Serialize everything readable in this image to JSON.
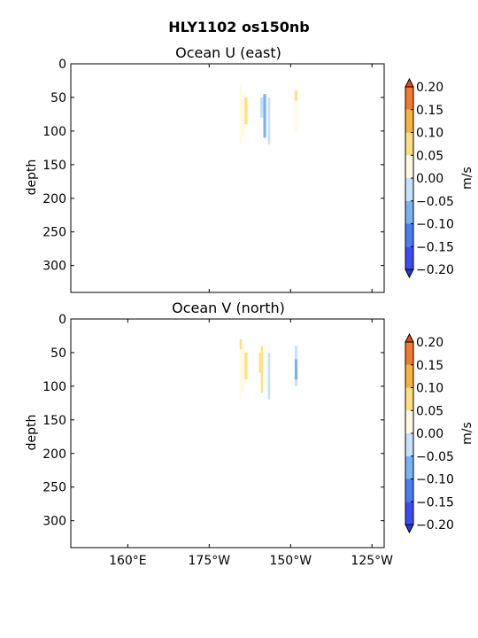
{
  "figure": {
    "title": "HLY1102 os150nb"
  },
  "chart_data": [
    {
      "type": "heatmap",
      "title": "Ocean U (east)",
      "xlabel": "",
      "ylabel": "depth",
      "ylim": [
        0,
        340
      ],
      "y_inverted": true,
      "y_ticks": [
        0,
        50,
        100,
        150,
        200,
        250,
        300
      ],
      "xlim": [
        -197,
        -120
      ],
      "x_ticks": [
        -163,
        -143,
        -123
      ],
      "x_tick_labels": [
        "",
        "",
        ""
      ],
      "colorbar": {
        "label": "m/s",
        "levels": [
          -0.2,
          -0.15,
          -0.1,
          -0.05,
          0.0,
          0.05,
          0.1,
          0.15,
          0.2
        ],
        "tick_labels": [
          "−0.20",
          "−0.15",
          "−0.10",
          "−0.05",
          "0.00",
          "0.05",
          "0.10",
          "0.15",
          "0.20"
        ]
      },
      "cells": [
        {
          "lon": -155.5,
          "lon2": -155.0,
          "d1": 30,
          "d2": 120,
          "v": 0.03
        },
        {
          "lon": -155.0,
          "lon2": -154.3,
          "d1": 45,
          "d2": 110,
          "v": 0.04
        },
        {
          "lon": -154.3,
          "lon2": -153.6,
          "d1": 50,
          "d2": 90,
          "v": 0.06
        },
        {
          "lon": -150.5,
          "lon2": -149.7,
          "d1": 50,
          "d2": 80,
          "v": -0.03
        },
        {
          "lon": -149.7,
          "lon2": -149.0,
          "d1": 45,
          "d2": 110,
          "v": -0.06
        },
        {
          "lon": -148.6,
          "lon2": -148.0,
          "d1": 50,
          "d2": 120,
          "v": -0.04
        },
        {
          "lon": -142.0,
          "lon2": -141.3,
          "d1": 40,
          "d2": 55,
          "v": 0.08
        },
        {
          "lon": -142.0,
          "lon2": -141.3,
          "d1": 55,
          "d2": 100,
          "v": 0.03
        }
      ]
    },
    {
      "type": "heatmap",
      "title": "Ocean V (north)",
      "xlabel": "",
      "ylabel": "depth",
      "ylim": [
        0,
        340
      ],
      "y_inverted": true,
      "y_ticks": [
        0,
        50,
        100,
        150,
        200,
        250,
        300
      ],
      "xlim": [
        -197,
        -120
      ],
      "x_ticks": [
        -183,
        -163,
        -143,
        -123
      ],
      "x_tick_labels": [
        "160°E",
        "175°W",
        "150°W",
        "125°W"
      ],
      "colorbar": {
        "label": "m/s",
        "levels": [
          -0.2,
          -0.15,
          -0.1,
          -0.05,
          0.0,
          0.05,
          0.1,
          0.15,
          0.2
        ],
        "tick_labels": [
          "−0.20",
          "−0.15",
          "−0.10",
          "−0.05",
          "0.00",
          "0.05",
          "0.10",
          "0.15",
          "0.20"
        ]
      },
      "cells": [
        {
          "lon": -155.5,
          "lon2": -155.0,
          "d1": 30,
          "d2": 120,
          "v": 0.03
        },
        {
          "lon": -155.5,
          "lon2": -155.0,
          "d1": 30,
          "d2": 45,
          "v": 0.08
        },
        {
          "lon": -155.0,
          "lon2": -154.3,
          "d1": 40,
          "d2": 110,
          "v": 0.03
        },
        {
          "lon": -154.3,
          "lon2": -153.6,
          "d1": 50,
          "d2": 90,
          "v": 0.07
        },
        {
          "lon": -150.8,
          "lon2": -150.3,
          "d1": 50,
          "d2": 80,
          "v": 0.08
        },
        {
          "lon": -150.3,
          "lon2": -149.8,
          "d1": 40,
          "d2": 110,
          "v": 0.06
        },
        {
          "lon": -148.6,
          "lon2": -148.0,
          "d1": 50,
          "d2": 120,
          "v": -0.03
        },
        {
          "lon": -142.0,
          "lon2": -141.3,
          "d1": 40,
          "d2": 100,
          "v": -0.04
        },
        {
          "lon": -142.0,
          "lon2": -141.3,
          "d1": 60,
          "d2": 90,
          "v": -0.08
        }
      ]
    }
  ],
  "colors": {
    "levels": [
      "#3b4cf7",
      "#4a7df0",
      "#7ab3f3",
      "#c6e2fb",
      "#fffbe0",
      "#ffdf80",
      "#f9b33c",
      "#f2792d"
    ],
    "under": "#2233ee",
    "over": "#e24a20"
  }
}
